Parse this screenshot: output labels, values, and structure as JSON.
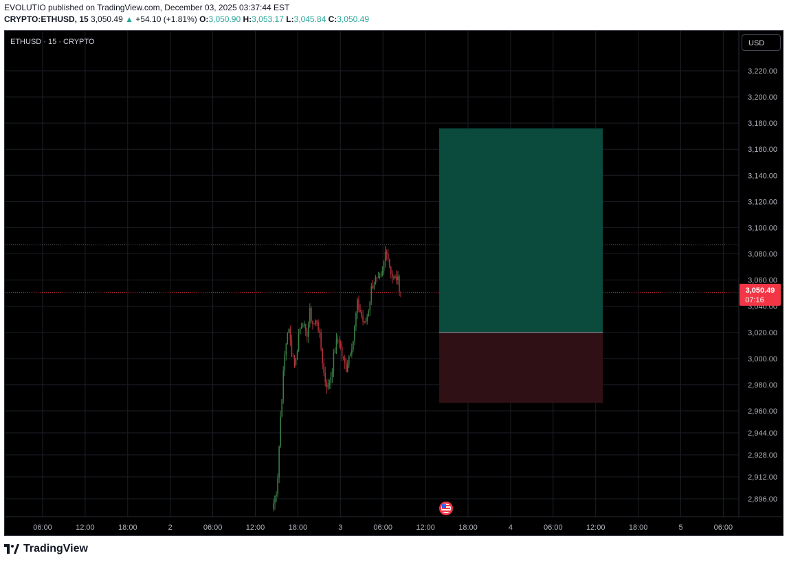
{
  "header": {
    "published_line": "EVOLUTIO published on TradingView.com, December 03, 2025 03:37:44 EST",
    "symbol": "CRYPTO:ETHUSD, 15",
    "last": "3,050.49",
    "arrow": "▲",
    "change": "+54.10 (+1.81%)",
    "o_label": "O:",
    "o_value": "3,050.90",
    "h_label": "H:",
    "h_value": "3,053.17",
    "l_label": "L:",
    "l_value": "3,045.84",
    "c_label": "C:",
    "c_value": "3,050.49"
  },
  "chart_title": "ETHUSD · 15 · CRYPTO",
  "currency_button": "USD",
  "last_price_badge": {
    "price": "3,050.49",
    "countdown": "07:16"
  },
  "footer_brand": "TradingView",
  "colors": {
    "up": "#26a69a",
    "candle_up": "#3a7d44",
    "candle_down": "#b3313a",
    "target_zone": "#0a4b3e",
    "stop_zone": "#2e1015",
    "price_badge": "#f23645"
  },
  "chart_data": {
    "type": "candlestick",
    "title": "ETHUSD · 15 · CRYPTO",
    "y_scale": "piecewise",
    "y_ticks": [
      2896,
      2912,
      2928,
      2944,
      2960,
      2980,
      3000,
      3020,
      3040,
      3060,
      3080,
      3100,
      3120,
      3140,
      3160,
      3180,
      3200,
      3220
    ],
    "y_tick_labels": [
      "2,896.00",
      "2,912.00",
      "2,928.00",
      "2,944.00",
      "2,960.00",
      "2,980.00",
      "3,000.00",
      "3,020.00",
      "3,040.00",
      "3,060.00",
      "3,080.00",
      "3,100.00",
      "3,120.00",
      "3,140.00",
      "3,160.00",
      "3,180.00",
      "3,200.00",
      "3,220.00"
    ],
    "x_tick_labels": [
      "06:00",
      "12:00",
      "18:00",
      "2",
      "06:00",
      "12:00",
      "18:00",
      "3",
      "06:00",
      "12:00",
      "18:00",
      "4",
      "06:00",
      "12:00",
      "18:00",
      "5",
      "06:00"
    ],
    "last_price": 3050.49,
    "recent_high_line": 3087,
    "position": {
      "target_top": 3176,
      "entry": 3020,
      "stop": 2966
    },
    "ohlc_path": [
      2893,
      2905,
      2960,
      3000,
      3025,
      3005,
      2995,
      3020,
      3030,
      3015,
      3035,
      3025,
      3030,
      3010,
      2985,
      2978,
      2990,
      3010,
      3015,
      3000,
      2993,
      3005,
      3015,
      3042,
      3035,
      3025,
      3035,
      3055,
      3060,
      3058,
      3065,
      3086,
      3070,
      3060,
      3062,
      3050
    ]
  }
}
